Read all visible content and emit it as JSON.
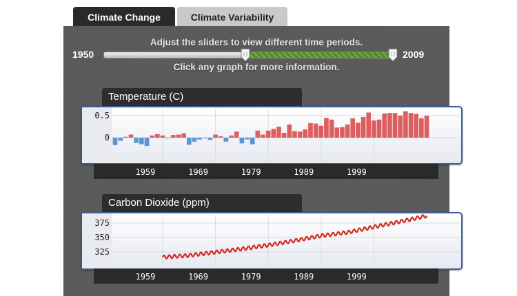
{
  "tabs": [
    {
      "label": "Climate Change",
      "active": true
    },
    {
      "label": "Climate Variability",
      "active": false
    }
  ],
  "slider": {
    "hint": "Adjust the sliders to view different time periods.",
    "start_year": "1950",
    "end_year": "2009",
    "selected_range": [
      1979,
      2009
    ]
  },
  "click_hint": "Click any graph for more information.",
  "colors": {
    "positive_bar": "#dc5e5e",
    "negative_bar": "#5b95d4",
    "co2_line": "#d42a1e",
    "slider_fill": "#5a9a30",
    "card_border": "#3c5d9a"
  },
  "chart_data": [
    {
      "type": "bar",
      "title": "Temperature (C)",
      "x_tick_labels": [
        "1959",
        "1969",
        "1979",
        "1989",
        "1999"
      ],
      "y_tick_labels": [
        "0.5",
        "0"
      ],
      "ylim": [
        -0.25,
        0.6
      ],
      "x": [
        1950,
        1951,
        1952,
        1953,
        1954,
        1955,
        1956,
        1957,
        1958,
        1959,
        1960,
        1961,
        1962,
        1963,
        1964,
        1965,
        1966,
        1967,
        1968,
        1969,
        1970,
        1971,
        1972,
        1973,
        1974,
        1975,
        1976,
        1977,
        1978,
        1979,
        1980,
        1981,
        1982,
        1983,
        1984,
        1985,
        1986,
        1987,
        1988,
        1989,
        1990,
        1991,
        1992,
        1993,
        1994,
        1995,
        1996,
        1997,
        1998,
        1999,
        2000,
        2001,
        2002,
        2003,
        2004,
        2005,
        2006,
        2007,
        2008,
        2009
      ],
      "values": [
        -0.17,
        -0.07,
        0.02,
        0.07,
        -0.12,
        -0.15,
        -0.19,
        0.05,
        0.08,
        0.05,
        -0.01,
        0.06,
        0.07,
        0.1,
        -0.16,
        -0.09,
        -0.04,
        -0.01,
        -0.05,
        0.07,
        0.03,
        -0.09,
        0.05,
        0.14,
        -0.13,
        -0.04,
        -0.15,
        0.16,
        0.07,
        0.16,
        0.2,
        0.25,
        0.11,
        0.3,
        0.15,
        0.14,
        0.19,
        0.33,
        0.32,
        0.27,
        0.45,
        0.41,
        0.23,
        0.24,
        0.3,
        0.44,
        0.34,
        0.47,
        0.57,
        0.39,
        0.41,
        0.55,
        0.56,
        0.56,
        0.5,
        0.6,
        0.56,
        0.54,
        0.44,
        0.5
      ],
      "grid": true
    },
    {
      "type": "line",
      "title": "Carbon Dioxide (ppm)",
      "x_tick_labels": [
        "1959",
        "1969",
        "1979",
        "1989",
        "1999"
      ],
      "y_tick_labels": [
        "375",
        "350",
        "325"
      ],
      "ylim": [
        308,
        388
      ],
      "series": [
        {
          "x": [
            1959,
            1964,
            1969,
            1974,
            1979,
            1984,
            1989,
            1994,
            1999,
            2004,
            2009
          ],
          "values": [
            316,
            319,
            324.6,
            330.2,
            336.8,
            344.5,
            353.1,
            358.8,
            368.3,
            377.5,
            387.4
          ],
          "seasonal_amplitude": 3
        }
      ],
      "grid": true
    }
  ]
}
